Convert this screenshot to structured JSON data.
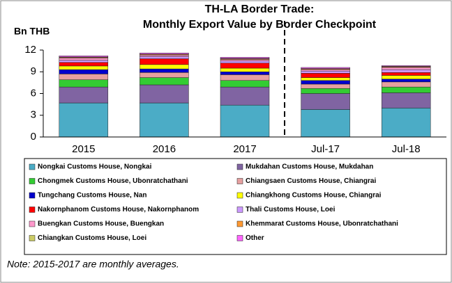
{
  "chart_data": {
    "type": "stacked_bar",
    "title": "TH-LA Border Trade:",
    "subtitle": "Monthly Export Value by Border Checkpoint",
    "y_label": "Bn THB",
    "note": "Note: 2015-2017 are monthly averages.",
    "categories": [
      "2015",
      "2016",
      "2017",
      "Jul-17",
      "Jul-18"
    ],
    "ylim": [
      0,
      12
    ],
    "yticks": [
      0,
      3,
      6,
      9,
      12
    ],
    "series": [
      {
        "name": "Nongkai Customs House, Nongkai",
        "color": "#4bacc6",
        "values": [
          4.7,
          4.7,
          4.4,
          3.8,
          4.0
        ]
      },
      {
        "name": "Mukdahan Customs House, Mukdahan",
        "color": "#8064a2",
        "values": [
          2.2,
          2.5,
          2.5,
          2.2,
          2.1
        ]
      },
      {
        "name": "Chongmek Customs House, Ubonratchathani",
        "color": "#33cc33",
        "values": [
          1.0,
          1.0,
          0.9,
          0.7,
          0.8
        ]
      },
      {
        "name": "Chiangsaen Customs House, Chiangrai",
        "color": "#e6a0a0",
        "values": [
          0.8,
          0.7,
          0.8,
          0.6,
          0.7
        ]
      },
      {
        "name": "Tungchang Customs House, Nan",
        "color": "#0000cc",
        "values": [
          0.6,
          0.5,
          0.4,
          0.5,
          0.4
        ]
      },
      {
        "name": "Chiangkhong Customs House, Chiangrai",
        "color": "#ffff00",
        "values": [
          0.5,
          0.6,
          0.5,
          0.4,
          0.5
        ]
      },
      {
        "name": "Nakornphanom Customs House, Nakornphanom",
        "color": "#ff0000",
        "values": [
          0.5,
          0.8,
          0.7,
          0.6,
          0.4
        ]
      },
      {
        "name": "Thali Customs House, Loei",
        "color": "#cc99ff",
        "values": [
          0.3,
          0.3,
          0.3,
          0.3,
          0.4
        ]
      },
      {
        "name": "Buengkan Customs House, Buengkan",
        "color": "#ff99cc",
        "values": [
          0.3,
          0.2,
          0.2,
          0.2,
          0.3
        ]
      },
      {
        "name": "Khemmarat Customs House, Ubonratchathani",
        "color": "#ff9933",
        "values": [
          0.1,
          0.1,
          0.1,
          0.1,
          0.1
        ]
      },
      {
        "name": "Chiangkan Customs House, Loei",
        "color": "#cccc66",
        "values": [
          0.05,
          0.05,
          0.05,
          0.05,
          0.05
        ]
      },
      {
        "name": "Other",
        "color": "#ff66ff",
        "values": [
          0.15,
          0.15,
          0.15,
          0.15,
          0.1
        ]
      }
    ]
  }
}
